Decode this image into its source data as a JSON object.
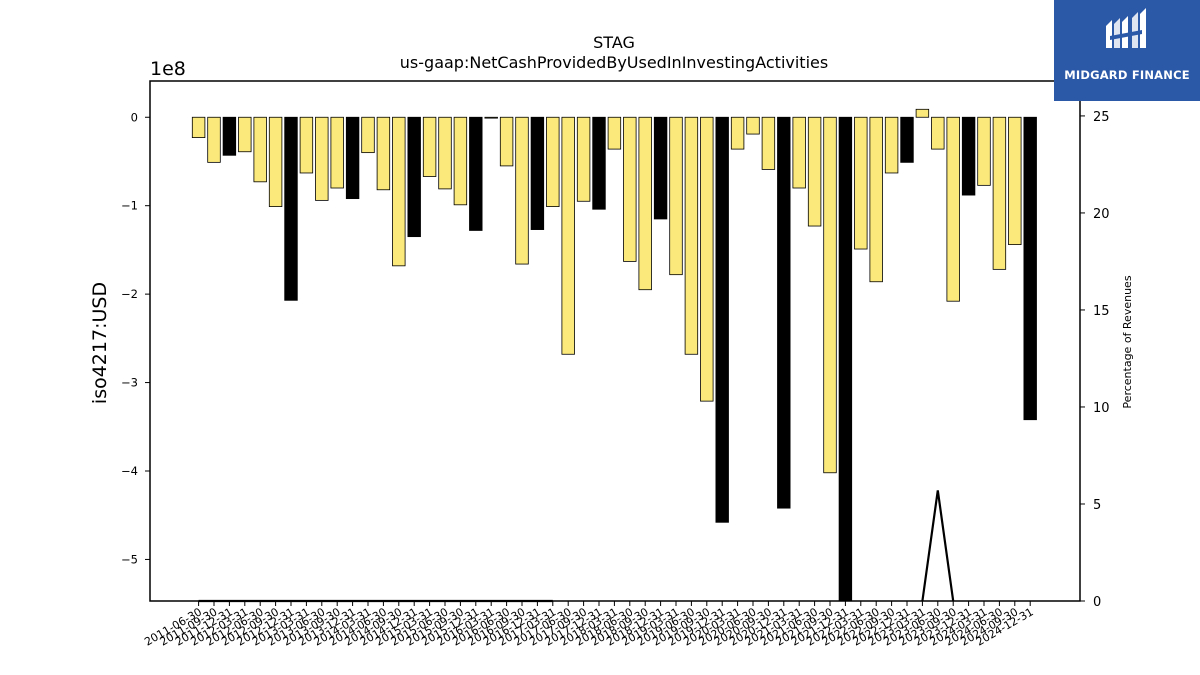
{
  "brand": {
    "name": "MIDGARD FINANCE",
    "color": "#2c58a8"
  },
  "chart_data": {
    "type": "bar",
    "title": "STAG",
    "subtitle": "us-gaap:NetCashProvidedByUsedInInvestingActivities",
    "ylabel": "iso4217:USD",
    "y_offset_label": "1e8",
    "y2label": "Percentage of Revenues",
    "ylim": [
      -5.47,
      0.41
    ],
    "y2lim": [
      0,
      26.8
    ],
    "yticks": [
      0,
      -1,
      -2,
      -3,
      -4,
      -5
    ],
    "y2ticks": [
      0,
      5,
      10,
      15,
      20,
      25
    ],
    "grid": false,
    "colors": {
      "quarter": "#fbe97c",
      "year_end": "#000000"
    },
    "categories": [
      "2011-06-30",
      "2011-09-30",
      "2011-12-31",
      "2012-03-31",
      "2012-06-30",
      "2012-09-30",
      "2012-12-31",
      "2013-03-31",
      "2013-06-30",
      "2013-09-30",
      "2013-12-31",
      "2014-03-31",
      "2014-06-30",
      "2014-09-30",
      "2014-12-31",
      "2015-03-31",
      "2015-06-30",
      "2015-09-30",
      "2015-12-31",
      "2016-03-31",
      "2016-06-30",
      "2016-09-30",
      "2016-12-31",
      "2017-03-31",
      "2017-06-30",
      "2017-09-30",
      "2017-12-31",
      "2018-03-31",
      "2018-06-30",
      "2018-09-30",
      "2018-12-31",
      "2019-03-31",
      "2019-06-30",
      "2019-09-30",
      "2019-12-31",
      "2020-03-31",
      "2020-06-30",
      "2020-09-30",
      "2020-12-31",
      "2021-03-31",
      "2021-06-30",
      "2021-09-30",
      "2021-12-31",
      "2022-03-31",
      "2022-06-30",
      "2022-09-30",
      "2022-12-31",
      "2023-03-31",
      "2023-06-30",
      "2023-09-30",
      "2023-12-31",
      "2024-03-31",
      "2024-06-30",
      "2024-09-30",
      "2024-12-31"
    ],
    "values": [
      -0.23,
      -0.51,
      -0.43,
      -0.39,
      -0.73,
      -1.01,
      -2.07,
      -0.63,
      -0.94,
      -0.8,
      -0.92,
      -0.4,
      -0.82,
      -1.68,
      -1.35,
      -0.67,
      -0.81,
      -0.99,
      -1.28,
      -0.01,
      -0.55,
      -1.66,
      -1.27,
      -1.01,
      -2.68,
      -0.95,
      -1.04,
      -0.36,
      -1.63,
      -1.95,
      -1.15,
      -1.78,
      -2.68,
      -3.21,
      -4.58,
      -0.36,
      -0.19,
      -0.59,
      -4.42,
      -0.8,
      -1.23,
      -4.02,
      -5.47,
      -1.49,
      -1.86,
      -0.63,
      -0.51,
      0.09,
      -0.36,
      -2.08,
      -0.88,
      -0.77,
      -1.72,
      -1.44,
      -3.42
    ],
    "year_end": [
      false,
      false,
      true,
      false,
      false,
      false,
      true,
      false,
      false,
      false,
      true,
      false,
      false,
      false,
      true,
      false,
      false,
      false,
      true,
      false,
      false,
      false,
      true,
      false,
      false,
      false,
      true,
      false,
      false,
      false,
      true,
      false,
      false,
      false,
      true,
      false,
      false,
      false,
      true,
      false,
      false,
      false,
      true,
      false,
      false,
      false,
      true,
      false,
      false,
      false,
      true,
      false,
      false,
      false,
      true
    ],
    "percentage_series": {
      "values": [
        0,
        0,
        0,
        0,
        0,
        0,
        0,
        0,
        0,
        0,
        0,
        0,
        0,
        0,
        0,
        0,
        0,
        0,
        0,
        0,
        0,
        0,
        0,
        0,
        null,
        null,
        null,
        null,
        null,
        null,
        null,
        null,
        null,
        null,
        null,
        null,
        null,
        null,
        null,
        null,
        null,
        null,
        null,
        null,
        null,
        null,
        null,
        0,
        5.7,
        0,
        null,
        null,
        null,
        null,
        null
      ],
      "color": "#000000"
    }
  }
}
